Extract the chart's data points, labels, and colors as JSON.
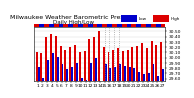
{
  "title": "Milwaukee Weather Barometric Pressure",
  "subtitle": "Daily High/Low",
  "ylabel_right_values": [
    29.6,
    29.7,
    29.8,
    29.9,
    30.0,
    30.1,
    30.2,
    30.3,
    30.4,
    30.5
  ],
  "ymin": 29.55,
  "ymax": 30.58,
  "bar_color_high": "#dd0000",
  "bar_color_low": "#0000cc",
  "background_color": "#ffffff",
  "plot_bg_color": "#ffffff",
  "days": [
    1,
    2,
    3,
    4,
    5,
    6,
    7,
    8,
    9,
    10,
    11,
    12,
    13,
    14,
    15,
    16,
    17,
    18,
    19,
    20,
    21,
    22,
    23,
    24,
    25,
    26,
    27
  ],
  "highs": [
    30.1,
    30.08,
    30.4,
    30.45,
    30.42,
    30.22,
    30.15,
    30.2,
    30.25,
    30.1,
    30.12,
    30.35,
    30.4,
    30.5,
    30.2,
    30.1,
    30.15,
    30.18,
    30.12,
    30.15,
    30.2,
    30.22,
    30.28,
    30.18,
    30.32,
    30.25,
    30.3
  ],
  "lows": [
    29.82,
    29.62,
    29.95,
    30.08,
    30.02,
    29.88,
    29.78,
    29.82,
    29.9,
    29.62,
    29.58,
    29.9,
    30.0,
    29.55,
    29.88,
    29.8,
    29.82,
    29.88,
    29.85,
    29.82,
    29.8,
    29.72,
    29.68,
    29.7,
    29.88,
    29.65,
    29.78
  ],
  "dotted_days": [
    15,
    16,
    17,
    18
  ],
  "title_fontsize": 4.5,
  "tick_fontsize": 3.2,
  "bar_width": 0.4,
  "legend_high_label": "High",
  "legend_low_label": "Low"
}
